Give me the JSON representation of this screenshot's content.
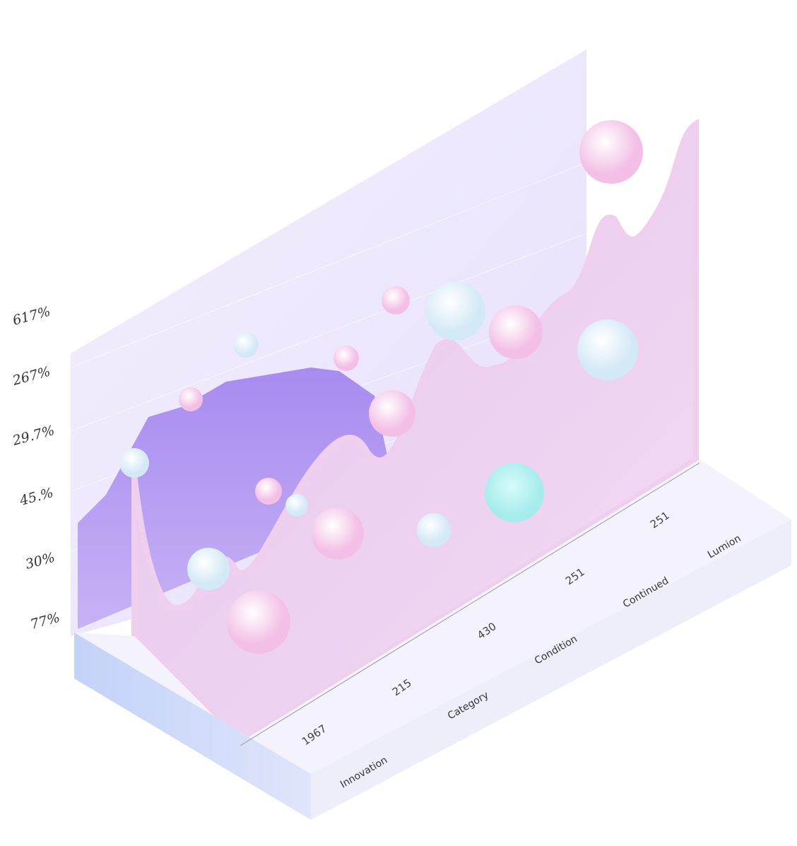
{
  "y_labels": [
    "617%",
    "267%",
    "29.7%",
    "45.%",
    "30%",
    "77%"
  ],
  "x_labels": [
    "1967",
    "215",
    "430",
    "251",
    "251"
  ],
  "categories": [
    "Innovation",
    "Category",
    "Condition",
    "Continued",
    "Lumion"
  ]
}
